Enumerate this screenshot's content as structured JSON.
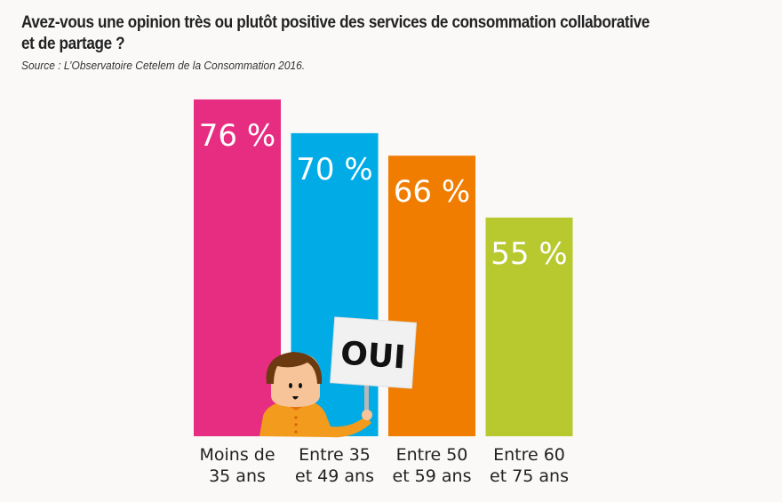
{
  "chart_data": {
    "type": "bar",
    "title": "Avez-vous une opinion très ou plutôt positive des services de consommation collaborative et de partage ?",
    "subtitle": "Source : L’Observatoire Cetelem de la Consommation 2016.",
    "categories": [
      [
        "Moins de",
        "35 ans"
      ],
      [
        "Entre 35",
        "et 49 ans"
      ],
      [
        "Entre 50",
        "et 59 ans"
      ],
      [
        "Entre 60",
        "et 75 ans"
      ]
    ],
    "values": [
      76,
      70,
      66,
      55
    ],
    "value_labels": [
      "76 %",
      "70 %",
      "66 %",
      "55 %"
    ],
    "colors": [
      "#e72d82",
      "#00abe6",
      "#f07c00",
      "#b8c92f"
    ],
    "xlabel": "",
    "ylabel": "",
    "grid": false,
    "legend": "none",
    "annotation": "OUI"
  },
  "header": {
    "title_line1": "Avez-vous une opinion très ou plutôt positive des services de consommation collaborative",
    "title_line2": "et de partage ?",
    "source": "Source : L’Observatoire Cetelem de la Consommation 2016."
  }
}
